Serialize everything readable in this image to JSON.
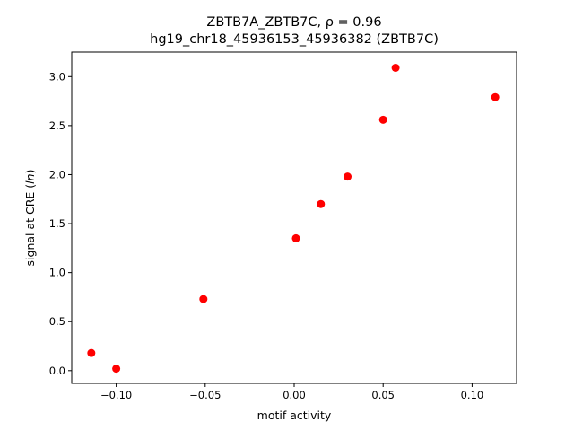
{
  "chart_data": {
    "type": "scatter",
    "title_line1": "ZBTB7A_ZBTB7C, ρ = 0.96",
    "title_line2": "hg19_chr18_45936153_45936382 (ZBTB7C)",
    "xlabel": "motif activity",
    "ylabel_main": "signal at CRE (",
    "ylabel_italic": "ln",
    "ylabel_end": ")",
    "xlim": [
      -0.125,
      0.125
    ],
    "ylim": [
      -0.13,
      3.25
    ],
    "xticks": [
      -0.1,
      -0.05,
      0.0,
      0.05,
      0.1
    ],
    "xtick_labels": [
      "−0.10",
      "−0.05",
      "0.00",
      "0.05",
      "0.10"
    ],
    "yticks": [
      0.0,
      0.5,
      1.0,
      1.5,
      2.0,
      2.5,
      3.0
    ],
    "ytick_labels": [
      "0.0",
      "0.5",
      "1.0",
      "1.5",
      "2.0",
      "2.5",
      "3.0"
    ],
    "marker_color": "#ff0000",
    "grid": false,
    "points": [
      {
        "x": -0.114,
        "y": 0.18
      },
      {
        "x": -0.1,
        "y": 0.02
      },
      {
        "x": -0.051,
        "y": 0.73
      },
      {
        "x": 0.001,
        "y": 1.35
      },
      {
        "x": 0.015,
        "y": 1.7
      },
      {
        "x": 0.03,
        "y": 1.98
      },
      {
        "x": 0.05,
        "y": 2.56
      },
      {
        "x": 0.057,
        "y": 3.09
      },
      {
        "x": 0.113,
        "y": 2.79
      }
    ]
  }
}
